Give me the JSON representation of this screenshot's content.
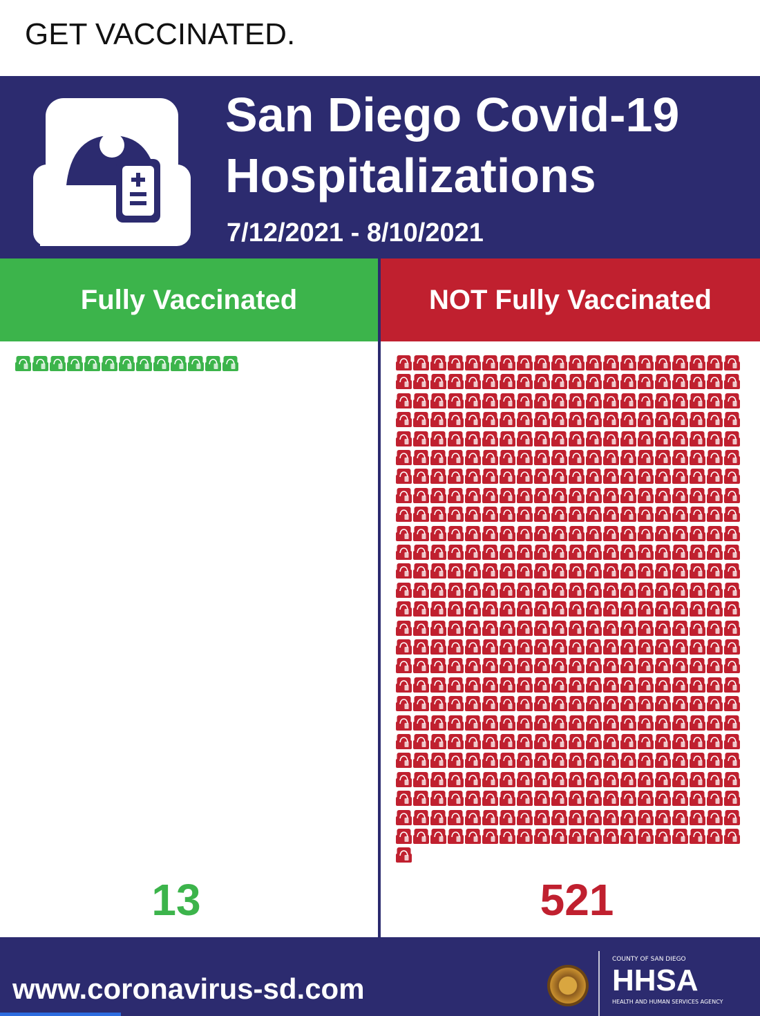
{
  "caption": "GET VACCINATED.",
  "header": {
    "icon": "hospital-bed-icon",
    "title_line1": "San Diego Covid-19",
    "title_line2": "Hospitalizations",
    "date_range": "7/12/2021 - 8/10/2021"
  },
  "columns": [
    {
      "label": "Fully Vaccinated",
      "count": "13",
      "icon_count": 13,
      "icons_per_row": 20,
      "color": "#3cb44b"
    },
    {
      "label": "NOT Fully Vaccinated",
      "count": "521",
      "icon_count": 521,
      "icons_per_row": 20,
      "color": "#c0202f"
    }
  ],
  "footer": {
    "url": "www.coronavirus-sd.com",
    "seal": "county-seal-icon",
    "agency_top": "COUNTY OF SAN DIEGO",
    "agency_mark": "HHSA",
    "agency_sub": "HEALTH AND HUMAN SERVICES AGENCY"
  },
  "colors": {
    "navy": "#2c2b6f",
    "green": "#3cb44b",
    "red": "#c0202f"
  }
}
